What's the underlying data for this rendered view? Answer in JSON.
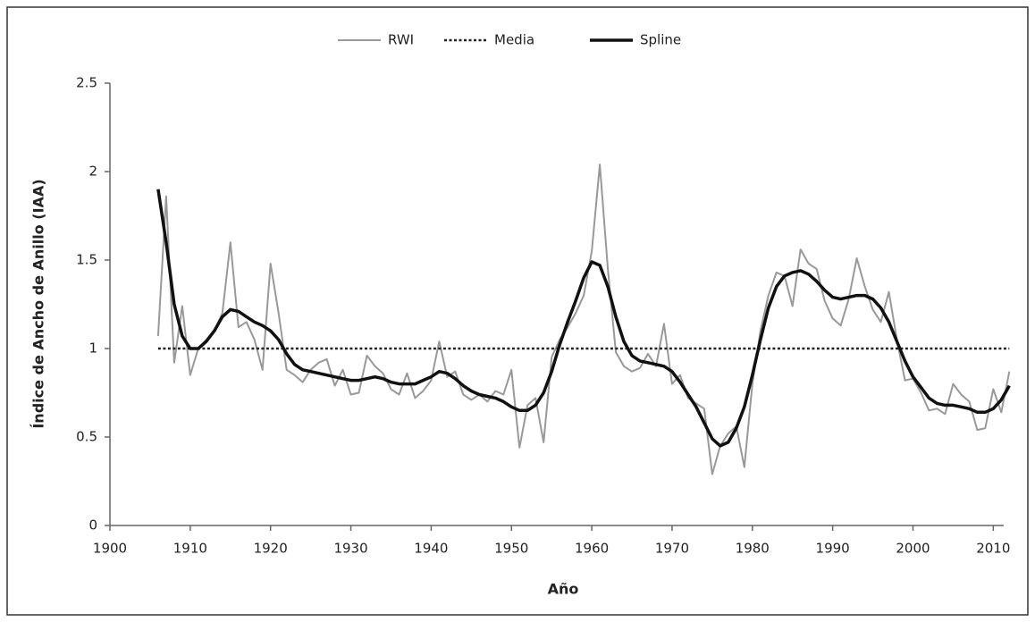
{
  "chart_data": {
    "type": "line",
    "xlabel": "Año",
    "ylabel": "Índice de Ancho de Anillo (IAA)",
    "x": [
      1906,
      1907,
      1908,
      1909,
      1910,
      1911,
      1912,
      1913,
      1914,
      1915,
      1916,
      1917,
      1918,
      1919,
      1920,
      1921,
      1922,
      1923,
      1924,
      1925,
      1926,
      1927,
      1928,
      1929,
      1930,
      1931,
      1932,
      1933,
      1934,
      1935,
      1936,
      1937,
      1938,
      1939,
      1940,
      1941,
      1942,
      1943,
      1944,
      1945,
      1946,
      1947,
      1948,
      1949,
      1950,
      1951,
      1952,
      1953,
      1954,
      1955,
      1956,
      1957,
      1958,
      1959,
      1960,
      1961,
      1962,
      1963,
      1964,
      1965,
      1966,
      1967,
      1968,
      1969,
      1970,
      1971,
      1972,
      1973,
      1974,
      1975,
      1976,
      1977,
      1978,
      1979,
      1980,
      1981,
      1982,
      1983,
      1984,
      1985,
      1986,
      1987,
      1988,
      1989,
      1990,
      1991,
      1992,
      1993,
      1994,
      1995,
      1996,
      1997,
      1998,
      1999,
      2000,
      2001,
      2002,
      2003,
      2004,
      2005,
      2006,
      2007,
      2008,
      2009,
      2010,
      2011,
      2012
    ],
    "series": [
      {
        "name": "RWI",
        "color": "#999999",
        "style": "solid",
        "width": 2,
        "values": [
          1.07,
          1.86,
          0.92,
          1.24,
          0.85,
          1.0,
          1.05,
          1.1,
          1.2,
          1.6,
          1.12,
          1.15,
          1.05,
          0.88,
          1.48,
          1.2,
          0.88,
          0.85,
          0.81,
          0.88,
          0.92,
          0.94,
          0.79,
          0.88,
          0.74,
          0.75,
          0.96,
          0.9,
          0.86,
          0.77,
          0.74,
          0.86,
          0.72,
          0.76,
          0.82,
          1.04,
          0.84,
          0.87,
          0.74,
          0.71,
          0.74,
          0.7,
          0.76,
          0.74,
          0.88,
          0.44,
          0.68,
          0.72,
          0.47,
          0.95,
          1.05,
          1.12,
          1.2,
          1.3,
          1.55,
          2.04,
          1.45,
          0.98,
          0.9,
          0.87,
          0.89,
          0.97,
          0.9,
          1.14,
          0.8,
          0.85,
          0.72,
          0.69,
          0.66,
          0.29,
          0.45,
          0.52,
          0.56,
          0.33,
          0.8,
          1.1,
          1.3,
          1.43,
          1.41,
          1.24,
          1.56,
          1.48,
          1.45,
          1.27,
          1.17,
          1.13,
          1.28,
          1.51,
          1.35,
          1.22,
          1.15,
          1.32,
          1.05,
          0.82,
          0.83,
          0.75,
          0.65,
          0.66,
          0.63,
          0.8,
          0.74,
          0.7,
          0.54,
          0.55,
          0.77,
          0.64,
          0.87
        ]
      },
      {
        "name": "Media",
        "color": "#222222",
        "style": "dotted",
        "width": 2.5,
        "x": [
          1906,
          2012
        ],
        "values": [
          1,
          1
        ]
      },
      {
        "name": "Spline",
        "color": "#111111",
        "style": "solid",
        "width": 3.5,
        "values": [
          1.9,
          1.6,
          1.25,
          1.07,
          1.0,
          1.0,
          1.04,
          1.1,
          1.18,
          1.22,
          1.21,
          1.18,
          1.15,
          1.13,
          1.1,
          1.05,
          0.97,
          0.91,
          0.88,
          0.87,
          0.86,
          0.85,
          0.84,
          0.83,
          0.82,
          0.82,
          0.83,
          0.84,
          0.83,
          0.81,
          0.8,
          0.8,
          0.8,
          0.82,
          0.84,
          0.87,
          0.86,
          0.83,
          0.79,
          0.76,
          0.74,
          0.73,
          0.72,
          0.7,
          0.67,
          0.65,
          0.65,
          0.68,
          0.75,
          0.87,
          1.02,
          1.15,
          1.27,
          1.4,
          1.49,
          1.47,
          1.35,
          1.18,
          1.04,
          0.96,
          0.93,
          0.92,
          0.91,
          0.9,
          0.87,
          0.81,
          0.74,
          0.67,
          0.58,
          0.49,
          0.45,
          0.47,
          0.55,
          0.67,
          0.85,
          1.05,
          1.23,
          1.35,
          1.41,
          1.43,
          1.44,
          1.42,
          1.38,
          1.33,
          1.29,
          1.28,
          1.29,
          1.3,
          1.3,
          1.28,
          1.23,
          1.15,
          1.04,
          0.93,
          0.84,
          0.78,
          0.72,
          0.69,
          0.68,
          0.68,
          0.67,
          0.66,
          0.64,
          0.64,
          0.66,
          0.71,
          0.79
        ]
      }
    ],
    "xlim": [
      1900,
      2011.3
    ],
    "xticks": [
      1900,
      1910,
      1920,
      1930,
      1940,
      1950,
      1960,
      1970,
      1980,
      1990,
      2000,
      2010
    ],
    "ylim": [
      0,
      2.5
    ],
    "yticks": [
      0,
      0.5,
      1,
      1.5,
      2,
      2.5
    ],
    "grid": false,
    "legend": "top"
  }
}
